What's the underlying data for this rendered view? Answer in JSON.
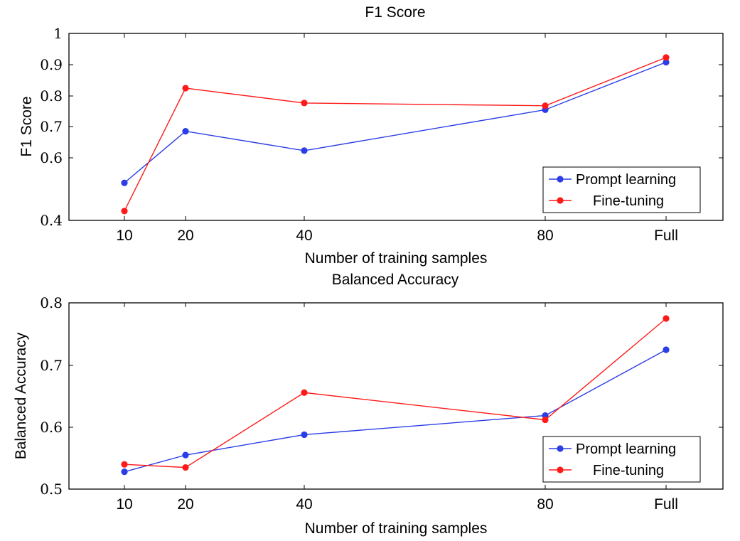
{
  "chart_data": [
    {
      "type": "line",
      "title": "F1 Score",
      "xlabel": "Number of training samples",
      "ylabel": "F1 Score",
      "categories": [
        "10",
        "20",
        "40",
        "80",
        "Full"
      ],
      "ylim": [
        0.4,
        1.0
      ],
      "yticks": [
        "0.4",
        "0.6",
        "0.7",
        "0.8",
        "0.9",
        "1"
      ],
      "legend_position": "bottom-right",
      "series": [
        {
          "name": "Prompt learning",
          "color": "#2b3de6",
          "values": [
            0.52,
            0.685,
            0.623,
            0.755,
            0.908
          ]
        },
        {
          "name": "Fine-tuning",
          "color": "#ff1a1a",
          "values": [
            0.43,
            0.825,
            0.777,
            0.768,
            0.923
          ]
        }
      ]
    },
    {
      "type": "line",
      "title": "Balanced Accuracy",
      "xlabel": "Number of training samples",
      "ylabel": "Balanced Accuracy",
      "categories": [
        "10",
        "20",
        "40",
        "80",
        "Full"
      ],
      "ylim": [
        0.5,
        0.8
      ],
      "yticks": [
        "0.5",
        "0.6",
        "0.7",
        "0.8"
      ],
      "legend_position": "bottom-right",
      "series": [
        {
          "name": "Prompt learning",
          "color": "#2b3de6",
          "values": [
            0.528,
            0.555,
            0.588,
            0.619,
            0.725
          ]
        },
        {
          "name": "Fine-tuning",
          "color": "#ff1a1a",
          "values": [
            0.54,
            0.535,
            0.656,
            0.612,
            0.775
          ]
        }
      ]
    }
  ]
}
